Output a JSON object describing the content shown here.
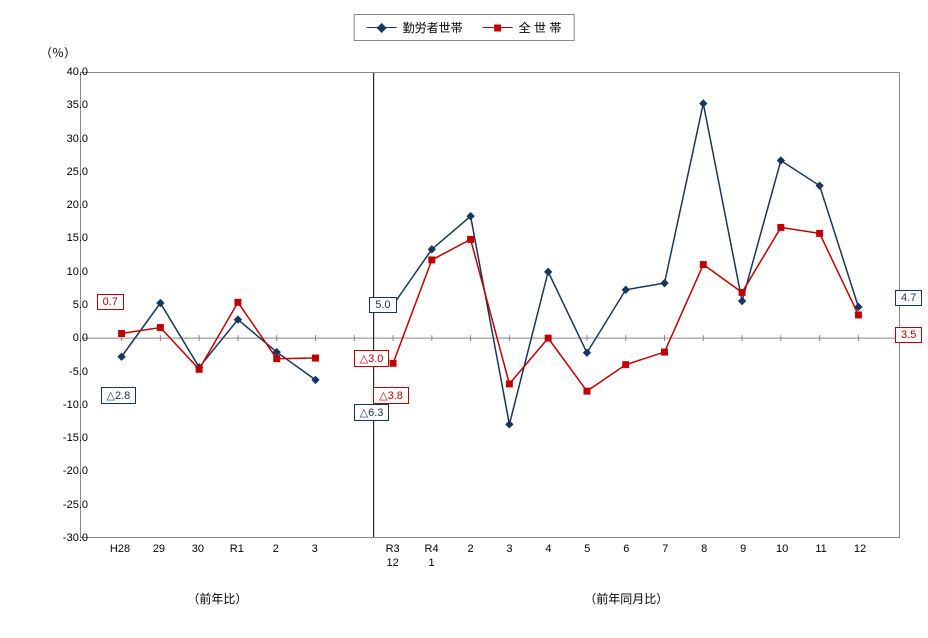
{
  "chart": {
    "type": "line",
    "ylabel": "（％）",
    "background_color": "#ffffff",
    "border_color": "#888888",
    "ylim": [
      -30,
      40
    ],
    "ytick_step": 5,
    "label_fontsize": 11,
    "divider_x_index": 6.5,
    "series": [
      {
        "name": "勤労者世帯",
        "color": "#17365d",
        "marker": "diamond",
        "marker_size": 7,
        "line_width": 1.5,
        "segments": [
          {
            "start": 0,
            "values": [
              -2.8,
              5.3,
              -4.4,
              2.8,
              -2.1,
              -6.3
            ]
          },
          {
            "start": 7,
            "values": [
              5.0,
              13.4,
              18.4,
              -13.0,
              10.0,
              -2.2,
              7.3,
              8.3,
              35.4,
              5.6,
              26.8,
              23.0,
              4.7
            ]
          }
        ]
      },
      {
        "name": "全 世 帯",
        "color": "#c00000",
        "marker": "square",
        "marker_size": 6,
        "line_width": 1.5,
        "segments": [
          {
            "start": 0,
            "values": [
              0.7,
              1.6,
              -4.7,
              5.4,
              -3.1,
              -3.0
            ]
          },
          {
            "start": 7,
            "values": [
              -3.8,
              11.8,
              14.9,
              -6.9,
              0.0,
              -8.0,
              -4.0,
              -2.1,
              11.1,
              6.9,
              16.7,
              15.8,
              3.5
            ]
          }
        ]
      }
    ],
    "x_categories": [
      "H28",
      "29",
      "30",
      "R1",
      "2",
      "3",
      "",
      "R3\n12",
      "R4\n1",
      "2",
      "3",
      "4",
      "5",
      "6",
      "7",
      "8",
      "9",
      "10",
      "11",
      "12"
    ],
    "sub_x_labels": [
      {
        "text": "（前年比）",
        "x_index": 2.5
      },
      {
        "text": "（前年同月比）",
        "x_index": 13.0
      }
    ],
    "callouts": [
      {
        "text": "0.7",
        "color": "#c00000",
        "x_index": -0.6,
        "y": 5.5
      },
      {
        "text": "△2.8",
        "color": "#17365d",
        "x_index": -0.5,
        "y": -8.5
      },
      {
        "text": "△3.0",
        "color": "#c00000",
        "x_index": 6.0,
        "y": -3.0
      },
      {
        "text": "△6.3",
        "color": "#17365d",
        "x_index": 6.0,
        "y": -11.0
      },
      {
        "text": "5.0",
        "color": "#17365d",
        "x_index": 6.4,
        "y": 5.0
      },
      {
        "text": "△3.8",
        "color": "#c00000",
        "x_index": 6.5,
        "y": -8.5
      },
      {
        "text": "4.7",
        "color": "#17365d",
        "x_index": 19.9,
        "y": 6.0
      },
      {
        "text": "3.5",
        "color": "#c00000",
        "x_index": 19.9,
        "y": 0.5
      }
    ]
  }
}
